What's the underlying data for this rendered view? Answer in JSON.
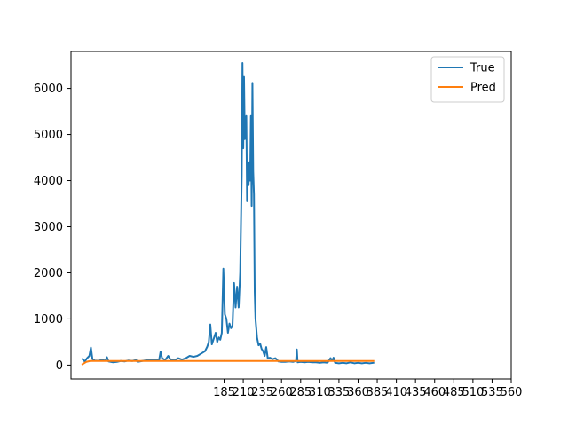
{
  "chart_data": {
    "type": "line",
    "title": "",
    "xlabel": "",
    "ylabel": "",
    "xlim": [
      -15,
      560
    ],
    "ylim": [
      -300,
      6800
    ],
    "xticks": [
      185,
      210,
      235,
      260,
      285,
      310,
      335,
      360,
      385,
      410,
      435,
      460,
      485,
      510,
      535,
      560
    ],
    "yticks": [
      0,
      1000,
      2000,
      3000,
      4000,
      5000,
      6000
    ],
    "legend_position": "top-right",
    "grid": false,
    "series": [
      {
        "name": "True",
        "color": "#1f77b4",
        "points": [
          [
            0,
            130
          ],
          [
            3,
            80
          ],
          [
            6,
            150
          ],
          [
            9,
            200
          ],
          [
            11,
            380
          ],
          [
            13,
            130
          ],
          [
            16,
            100
          ],
          [
            20,
            95
          ],
          [
            25,
            110
          ],
          [
            30,
            100
          ],
          [
            32,
            170
          ],
          [
            34,
            80
          ],
          [
            40,
            60
          ],
          [
            45,
            70
          ],
          [
            50,
            90
          ],
          [
            55,
            80
          ],
          [
            60,
            100
          ],
          [
            65,
            90
          ],
          [
            70,
            110
          ],
          [
            72,
            70
          ],
          [
            78,
            90
          ],
          [
            85,
            110
          ],
          [
            92,
            120
          ],
          [
            100,
            100
          ],
          [
            102,
            290
          ],
          [
            104,
            150
          ],
          [
            108,
            110
          ],
          [
            112,
            200
          ],
          [
            115,
            120
          ],
          [
            120,
            100
          ],
          [
            125,
            150
          ],
          [
            130,
            120
          ],
          [
            135,
            150
          ],
          [
            140,
            200
          ],
          [
            145,
            180
          ],
          [
            150,
            200
          ],
          [
            155,
            250
          ],
          [
            160,
            300
          ],
          [
            163,
            400
          ],
          [
            165,
            500
          ],
          [
            167,
            880
          ],
          [
            169,
            450
          ],
          [
            172,
            600
          ],
          [
            174,
            700
          ],
          [
            176,
            500
          ],
          [
            178,
            600
          ],
          [
            180,
            550
          ],
          [
            182,
            700
          ],
          [
            184,
            2090
          ],
          [
            186,
            1100
          ],
          [
            188,
            1000
          ],
          [
            190,
            700
          ],
          [
            192,
            900
          ],
          [
            194,
            800
          ],
          [
            196,
            850
          ],
          [
            198,
            1780
          ],
          [
            200,
            1250
          ],
          [
            202,
            1700
          ],
          [
            204,
            1250
          ],
          [
            206,
            2000
          ],
          [
            208,
            4100
          ],
          [
            209,
            6550
          ],
          [
            210,
            4700
          ],
          [
            211,
            6250
          ],
          [
            212,
            4900
          ],
          [
            213,
            5200
          ],
          [
            214,
            5400
          ],
          [
            215,
            3550
          ],
          [
            216,
            4400
          ],
          [
            217,
            3900
          ],
          [
            218,
            4400
          ],
          [
            219,
            4000
          ],
          [
            220,
            5400
          ],
          [
            221,
            3450
          ],
          [
            222,
            6120
          ],
          [
            223,
            4200
          ],
          [
            224,
            3700
          ],
          [
            225,
            1580
          ],
          [
            226,
            1000
          ],
          [
            228,
            600
          ],
          [
            230,
            430
          ],
          [
            232,
            470
          ],
          [
            234,
            350
          ],
          [
            236,
            300
          ],
          [
            238,
            200
          ],
          [
            240,
            390
          ],
          [
            242,
            150
          ],
          [
            245,
            160
          ],
          [
            248,
            130
          ],
          [
            252,
            150
          ],
          [
            256,
            80
          ],
          [
            260,
            70
          ],
          [
            265,
            70
          ],
          [
            270,
            80
          ],
          [
            275,
            70
          ],
          [
            279,
            90
          ],
          [
            280,
            340
          ],
          [
            281,
            60
          ],
          [
            285,
            70
          ],
          [
            290,
            60
          ],
          [
            295,
            70
          ],
          [
            300,
            60
          ],
          [
            305,
            60
          ],
          [
            310,
            50
          ],
          [
            315,
            60
          ],
          [
            320,
            50
          ],
          [
            324,
            150
          ],
          [
            326,
            100
          ],
          [
            328,
            160
          ],
          [
            330,
            50
          ],
          [
            335,
            40
          ],
          [
            340,
            50
          ],
          [
            345,
            40
          ],
          [
            350,
            60
          ],
          [
            355,
            40
          ],
          [
            360,
            50
          ],
          [
            365,
            40
          ],
          [
            370,
            50
          ],
          [
            375,
            40
          ],
          [
            380,
            50
          ]
        ]
      },
      {
        "name": "Pred",
        "color": "#ff7f0e",
        "points": [
          [
            0,
            20
          ],
          [
            5,
            70
          ],
          [
            10,
            90
          ],
          [
            15,
            90
          ],
          [
            30,
            90
          ],
          [
            100,
            90
          ],
          [
            200,
            90
          ],
          [
            300,
            90
          ],
          [
            380,
            90
          ]
        ]
      }
    ]
  }
}
